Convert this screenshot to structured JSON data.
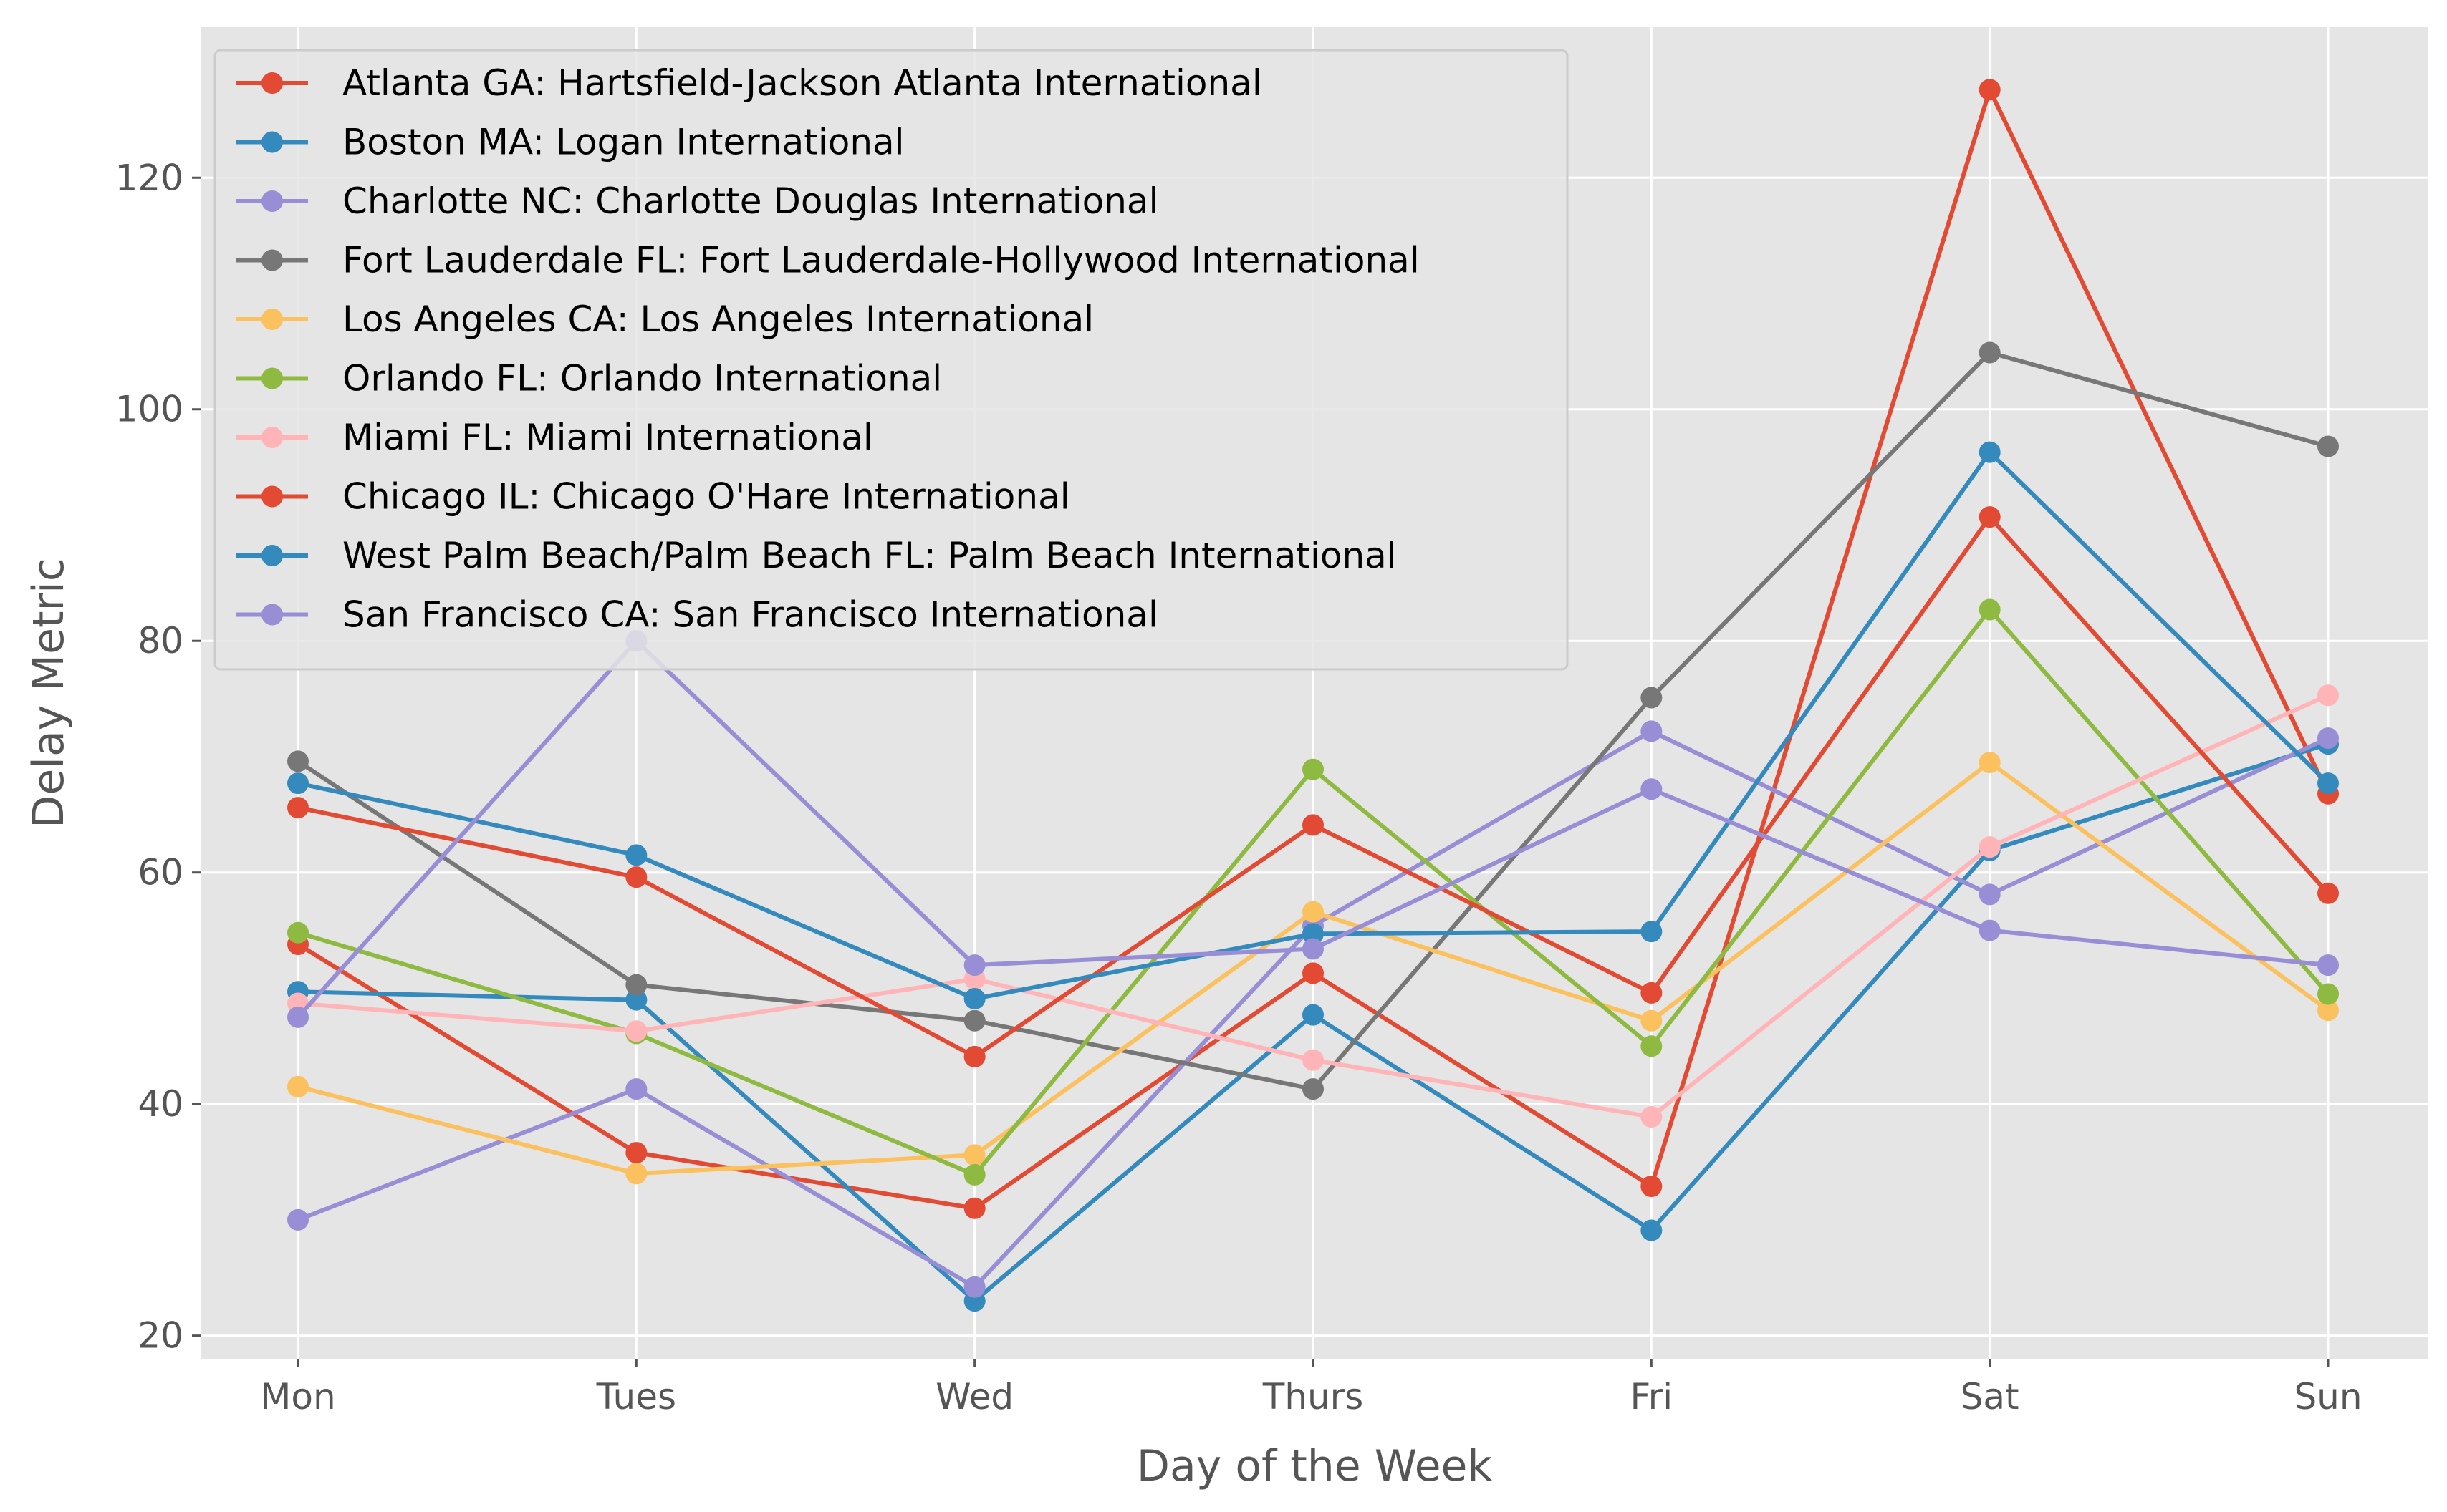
{
  "chart_data": {
    "type": "line",
    "title": "",
    "xlabel": "Day of the Week",
    "ylabel": "Delay Metric",
    "categories": [
      "Mon",
      "Tues",
      "Wed",
      "Thurs",
      "Fri",
      "Sat",
      "Sun"
    ],
    "ylim": [
      18,
      133
    ],
    "yticks": [
      20,
      40,
      60,
      80,
      100,
      120
    ],
    "grid": true,
    "legend_position": "top-left",
    "series": [
      {
        "name": "Atlanta GA: Hartsfield-Jackson Atlanta International",
        "color": "#E24A33",
        "values": [
          53.8,
          35.8,
          31.0,
          51.3,
          32.9,
          127.6,
          66.8
        ]
      },
      {
        "name": "Boston MA: Logan International",
        "color": "#348ABD",
        "values": [
          49.7,
          49.0,
          23.0,
          47.7,
          29.1,
          61.9,
          71.1
        ]
      },
      {
        "name": "Charlotte NC: Charlotte Douglas International",
        "color": "#988ED5",
        "values": [
          30.0,
          41.3,
          24.2,
          55.4,
          72.2,
          58.1,
          71.6
        ]
      },
      {
        "name": "Fort Lauderdale FL: Fort Lauderdale-Hollywood International",
        "color": "#777777",
        "values": [
          69.6,
          50.3,
          47.2,
          41.3,
          75.1,
          104.9,
          96.8
        ]
      },
      {
        "name": "Los Angeles CA: Los Angeles International",
        "color": "#FBC15E",
        "values": [
          41.5,
          34.0,
          35.6,
          56.6,
          47.2,
          69.5,
          48.1
        ]
      },
      {
        "name": "Orlando FL: Orlando International",
        "color": "#8EBA42",
        "values": [
          54.8,
          46.1,
          33.9,
          68.9,
          45.0,
          82.7,
          49.5
        ]
      },
      {
        "name": "Miami FL: Miami International",
        "color": "#FFB5B8",
        "values": [
          48.7,
          46.3,
          50.8,
          43.8,
          38.9,
          62.2,
          75.3
        ]
      },
      {
        "name": "Chicago IL: Chicago O'Hare International",
        "color": "#E24A33",
        "values": [
          65.6,
          59.6,
          44.1,
          64.1,
          49.6,
          90.7,
          58.2
        ]
      },
      {
        "name": "West Palm Beach/Palm Beach FL: Palm Beach International",
        "color": "#348ABD",
        "values": [
          67.7,
          61.5,
          49.1,
          54.7,
          54.9,
          96.3,
          67.7
        ]
      },
      {
        "name": "San Francisco CA: San Francisco International",
        "color": "#988ED5",
        "values": [
          47.5,
          80.0,
          52.0,
          53.4,
          67.2,
          55.0,
          52.0
        ]
      }
    ]
  }
}
